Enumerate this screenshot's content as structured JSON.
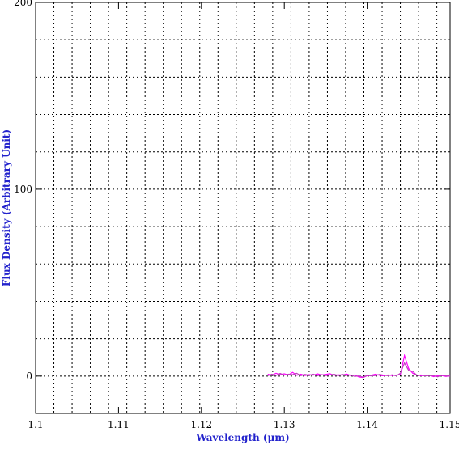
{
  "chart_data": {
    "type": "line",
    "x_label": "Wavelength (μm)",
    "y_label": "Flux Density (Arbitrary Unit)",
    "xlim": [
      1.1,
      1.15
    ],
    "ylim": [
      -20,
      200
    ],
    "xticks": [
      1.1,
      1.11,
      1.12,
      1.13,
      1.14,
      1.15
    ],
    "yticks": [
      0,
      100,
      200
    ],
    "xgrid": [
      1.1022,
      1.1044,
      1.1066,
      1.1088,
      1.111,
      1.1132,
      1.1154,
      1.1176,
      1.1198,
      1.122,
      1.1242,
      1.1264,
      1.1286,
      1.1308,
      1.133,
      1.1352,
      1.1374,
      1.1396,
      1.1418,
      1.144,
      1.1462,
      1.1484
    ],
    "ygrid": [
      0,
      20,
      40,
      60,
      80,
      100,
      120,
      140,
      160,
      180
    ],
    "grid": true,
    "x": [
      1.128,
      1.1285,
      1.129,
      1.1295,
      1.13,
      1.1305,
      1.131,
      1.1315,
      1.132,
      1.1325,
      1.133,
      1.1335,
      1.134,
      1.1345,
      1.135,
      1.1355,
      1.136,
      1.1365,
      1.137,
      1.1375,
      1.138,
      1.1385,
      1.139,
      1.1395,
      1.14,
      1.1405,
      1.141,
      1.1415,
      1.142,
      1.1425,
      1.143,
      1.1435,
      1.144,
      1.1445,
      1.145,
      1.1455,
      1.146,
      1.1465,
      1.147,
      1.1475,
      1.148,
      1.1485,
      1.149,
      1.1495,
      1.15
    ],
    "series": [
      {
        "color": "#ff00ff",
        "values": [
          1,
          0.5,
          1.5,
          0.8,
          1.2,
          0.6,
          2,
          0.4,
          1,
          0.3,
          0.8,
          0.5,
          1.2,
          0.6,
          0.9,
          1.3,
          0.4,
          0.7,
          0.5,
          1.1,
          0.3,
          0.6,
          -0.5,
          -0.8,
          0.2,
          0.5,
          1,
          0.4,
          0.2,
          0.6,
          0.3,
          0.5,
          0.8,
          11,
          4,
          1.5,
          0.6,
          0.2,
          0.4,
          0.5,
          -0.3,
          0.2,
          0.3,
          -0.2,
          0.1
        ]
      },
      {
        "color": "#c040c0",
        "values": [
          0.2,
          1,
          0.3,
          1.4,
          0.5,
          1,
          0.8,
          1.5,
          0.2,
          0.9,
          0.4,
          1,
          0.2,
          0.8,
          0.3,
          0.6,
          1,
          0.2,
          0.9,
          0.4,
          0.6,
          -0.2,
          0.1,
          -0.6,
          0.4,
          0.1,
          0.3,
          0.9,
          0.5,
          0.2,
          0.7,
          0.1,
          1.5,
          7,
          3,
          2.5,
          0.4,
          0.6,
          0.1,
          0.3,
          0.2,
          -0.4,
          0.5,
          0.1,
          -0.1
        ]
      }
    ]
  }
}
